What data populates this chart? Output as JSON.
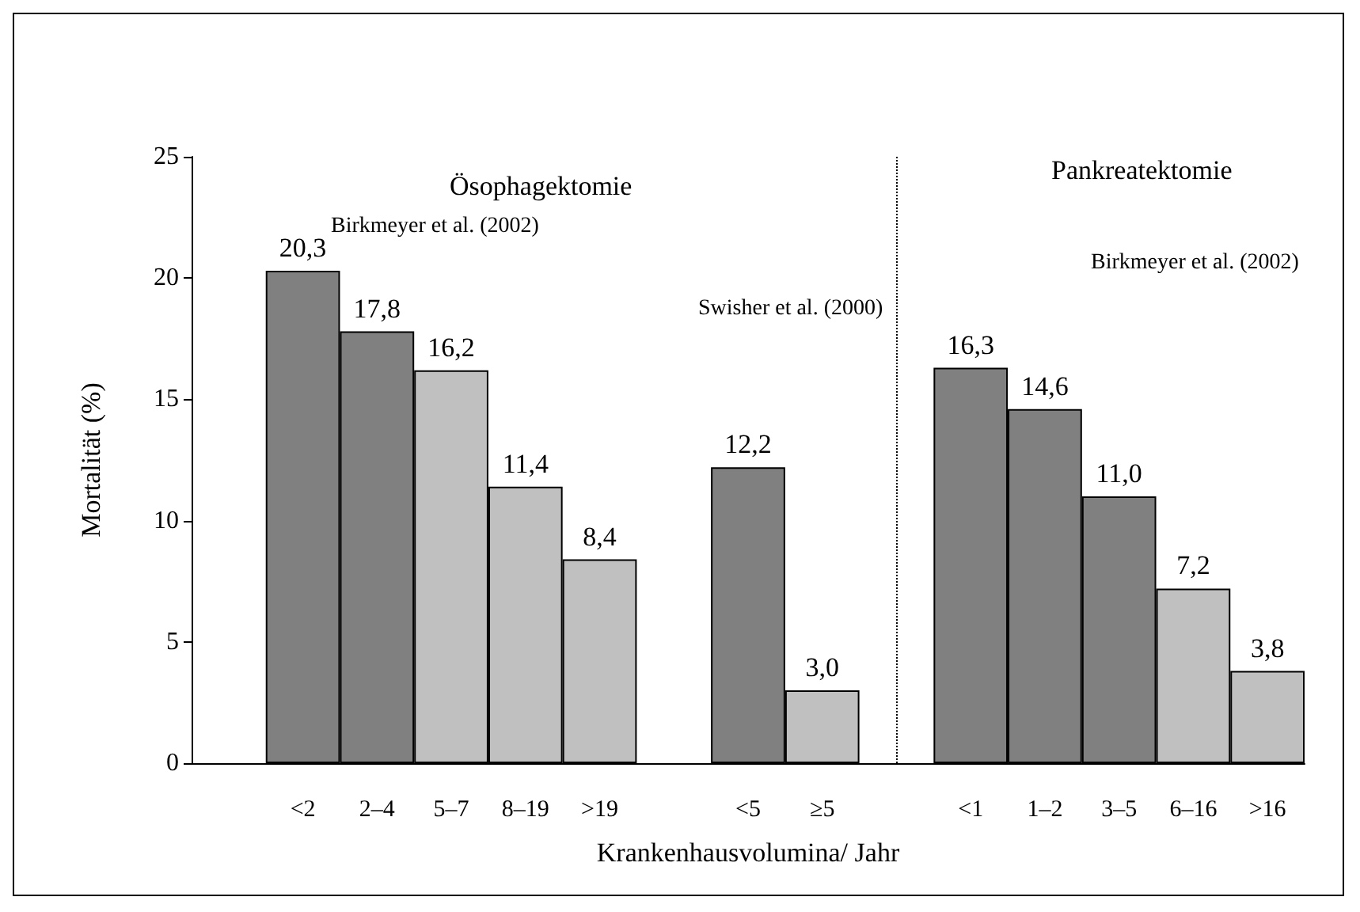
{
  "chart_data": {
    "type": "bar",
    "xlabel": "Krankenhausvolumina/ Jahr",
    "ylabel": "Mortalität (%)",
    "categories": [
      null,
      "<2",
      "2–4",
      "5–7",
      "8–19",
      ">19",
      null,
      "<5",
      "≥5",
      null,
      "<1",
      "1–2",
      "3–5",
      "6–16",
      ">16"
    ],
    "values": [
      null,
      20.3,
      17.8,
      16.2,
      11.4,
      8.4,
      null,
      12.2,
      3.0,
      null,
      16.3,
      14.6,
      11.0,
      7.2,
      3.8
    ],
    "colors": [
      "#808080",
      "#808080",
      "#808080",
      "#c0c0c0",
      "#c0c0c0",
      "#c0c0c0",
      "#808080",
      "#808080",
      "#c0c0c0",
      "#808080",
      "#808080",
      "#808080",
      "#808080",
      "#c0c0c0",
      "#c0c0c0"
    ],
    "value_labels": [
      null,
      "20,3",
      "17,8",
      "16,2",
      "11,4",
      "8,4",
      null,
      "12,2",
      "3,0",
      null,
      "16,3",
      "14,6",
      "11,0",
      "7,2",
      "3,8"
    ],
    "ylim": [
      0,
      25
    ],
    "yticks": [
      0,
      5,
      10,
      15,
      20,
      25
    ],
    "ref_lines": [
      {
        "axis": "x",
        "line_style": "dotted",
        "color": "#000000"
      }
    ],
    "annotations": [
      "Ösophagektomie",
      "Pankreatektomie",
      "Birkmeyer et al. (2002)",
      "Swisher et al. (2000)",
      "Birkmeyer et al. (2002)"
    ]
  }
}
